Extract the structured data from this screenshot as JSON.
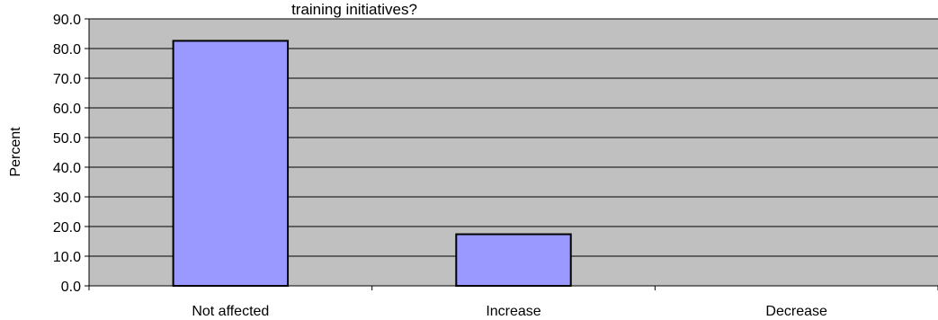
{
  "chart_data": {
    "type": "bar",
    "title": "training initiatives?",
    "xlabel": "",
    "ylabel": "Percent",
    "categories": [
      "Not affected",
      "Increase",
      "Decrease"
    ],
    "values": [
      82.6,
      17.4,
      0.0
    ],
    "ylim": [
      0,
      90
    ],
    "yticks": [
      0,
      10,
      20,
      30,
      40,
      50,
      60,
      70,
      80,
      90
    ],
    "ytick_labels": [
      "0.0",
      "10.0",
      "20.0",
      "30.0",
      "40.0",
      "50.0",
      "60.0",
      "70.0",
      "80.0",
      "90.0"
    ],
    "grid": true,
    "legend": "none",
    "colors": {
      "plot_background": "#c0c0c0",
      "bar_fill": "#9999ff",
      "bar_stroke": "#000000",
      "gridline": "#000000"
    }
  }
}
